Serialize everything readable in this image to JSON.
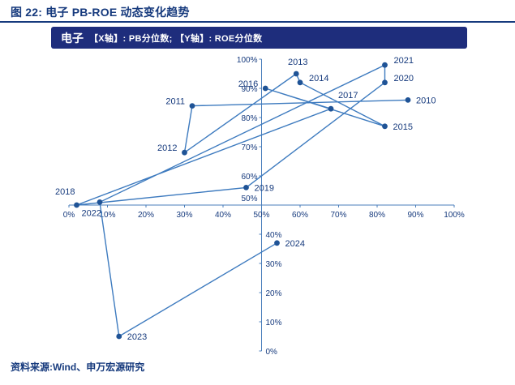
{
  "colors": {
    "navy": "#163a7d",
    "banner": "#1e2d7c",
    "line": "#3e7bbf",
    "dot": "#1f5396",
    "axis": "#4a7ebb"
  },
  "header": {
    "title": "图 22: 电子 PB-ROE 动态变化趋势"
  },
  "legend": {
    "series_name": "电子",
    "axis_note": "【X轴】: PB分位数; 【Y轴】: ROE分位数"
  },
  "footer": {
    "source": "资料来源:Wind、申万宏源研究"
  },
  "chart_data": {
    "type": "scatter",
    "title": "电子 PB-ROE 动态变化趋势",
    "xlabel": "PB分位数",
    "ylabel": "ROE分位数",
    "xlim": [
      0,
      100
    ],
    "ylim": [
      0,
      100
    ],
    "x_ticks": [
      "0%",
      "10%",
      "20%",
      "30%",
      "40%",
      "50%",
      "60%",
      "70%",
      "80%",
      "90%",
      "100%"
    ],
    "y_ticks": [
      "0%",
      "10%",
      "20%",
      "30%",
      "40%",
      "50%",
      "60%",
      "70%",
      "80%",
      "90%",
      "100%"
    ],
    "axis_cross": {
      "x": 50,
      "y": 50
    },
    "grid": false,
    "connected": true,
    "legend_position": "top-banner",
    "series": [
      {
        "name": "电子",
        "points": [
          {
            "year": "2010",
            "x": 88,
            "y": 86,
            "label_pos": "right"
          },
          {
            "year": "2011",
            "x": 32,
            "y": 84,
            "label_pos": "left"
          },
          {
            "year": "2012",
            "x": 30,
            "y": 68,
            "label_pos": "left"
          },
          {
            "year": "2013",
            "x": 59,
            "y": 95,
            "label_pos": "above"
          },
          {
            "year": "2014",
            "x": 60,
            "y": 92,
            "label_pos": "right-up"
          },
          {
            "year": "2015",
            "x": 82,
            "y": 77,
            "label_pos": "right"
          },
          {
            "year": "2016",
            "x": 51,
            "y": 90,
            "label_pos": "left"
          },
          {
            "year": "2017",
            "x": 68,
            "y": 83,
            "label_pos": "above-right"
          },
          {
            "year": "2018",
            "x": 2,
            "y": 50,
            "label_pos": "above-left"
          },
          {
            "year": "2019",
            "x": 46,
            "y": 56,
            "label_pos": "right"
          },
          {
            "year": "2020",
            "x": 82,
            "y": 92,
            "label_pos": "right-up"
          },
          {
            "year": "2021",
            "x": 82,
            "y": 98,
            "label_pos": "right-up"
          },
          {
            "year": "2022",
            "x": 8,
            "y": 51,
            "label_pos": "below-left"
          },
          {
            "year": "2023",
            "x": 13,
            "y": 5,
            "label_pos": "right"
          },
          {
            "year": "2024",
            "x": 54,
            "y": 37,
            "label_pos": "right"
          }
        ]
      }
    ]
  }
}
